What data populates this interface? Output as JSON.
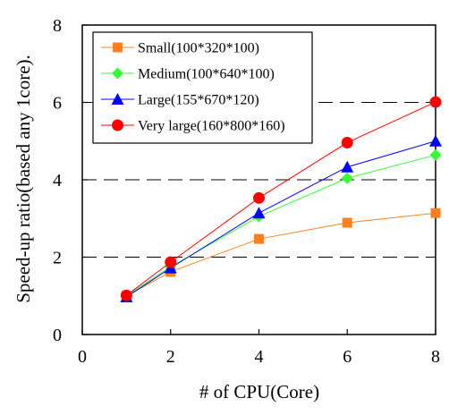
{
  "chart_data": {
    "type": "line",
    "title": "",
    "xlabel": "# of CPU(Core)",
    "ylabel": "Speed-up ratio(based any 1core).",
    "xlim": [
      0,
      8
    ],
    "ylim": [
      0,
      8
    ],
    "xticks": [
      "0",
      "2",
      "4",
      "6",
      "8"
    ],
    "yticks": [
      "0",
      "2",
      "4",
      "6",
      "8"
    ],
    "grid": "horizontal dashed at y=2,4,6",
    "legend_position": "top-left",
    "series": [
      {
        "name": "Small(100*320*100)",
        "color": "#ff7f1e",
        "marker": "square",
        "x": [
          1,
          2,
          4,
          6,
          8
        ],
        "y": [
          1.0,
          1.62,
          2.47,
          2.89,
          3.14
        ]
      },
      {
        "name": "Medium(100*640*100)",
        "color": "#33ff33",
        "marker": "diamond",
        "x": [
          1,
          2,
          4,
          6,
          8
        ],
        "y": [
          1.0,
          1.75,
          3.05,
          4.04,
          4.64
        ]
      },
      {
        "name": "Large(155*670*120)",
        "color": "#0000ff",
        "marker": "triangle",
        "x": [
          1,
          2,
          4,
          6,
          8
        ],
        "y": [
          0.97,
          1.72,
          3.14,
          4.33,
          5.0
        ]
      },
      {
        "name": "Very large(160*800*160)",
        "color": "#ff0000",
        "marker": "circle",
        "x": [
          1,
          2,
          4,
          6,
          8
        ],
        "y": [
          1.01,
          1.87,
          3.53,
          4.96,
          6.01
        ]
      }
    ]
  }
}
